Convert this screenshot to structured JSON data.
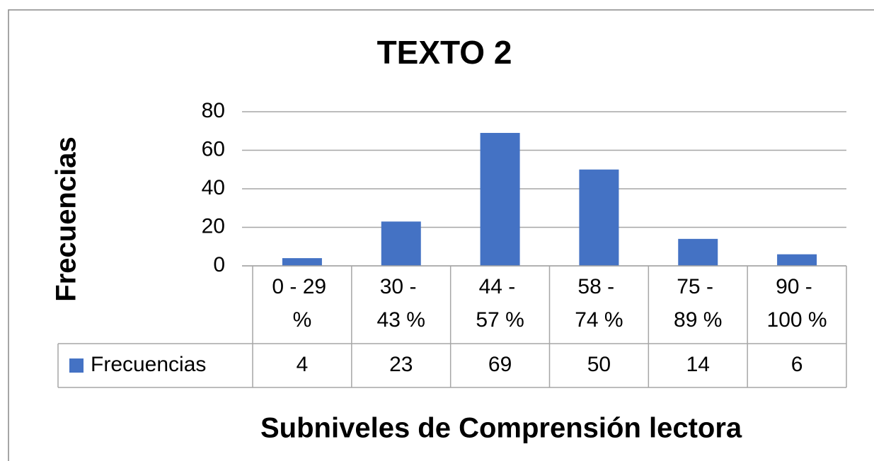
{
  "chart_data": {
    "type": "bar",
    "title": "TEXTO 2",
    "y_label": "Frecuencias",
    "x_label": "Subniveles de Comprensión lectora",
    "categories": [
      "0 - 29 %",
      "30 - 43 %",
      "44 - 57 %",
      "58 - 74 %",
      "75 - 89 %",
      "90 - 100 %"
    ],
    "series": [
      {
        "name": "Frecuencias",
        "color": "#4472c4",
        "values": [
          4,
          23,
          69,
          50,
          14,
          6
        ]
      }
    ],
    "ylim": [
      0,
      80
    ],
    "yticks": [
      0,
      20,
      40,
      60,
      80
    ],
    "grid": true,
    "data_table": true
  }
}
